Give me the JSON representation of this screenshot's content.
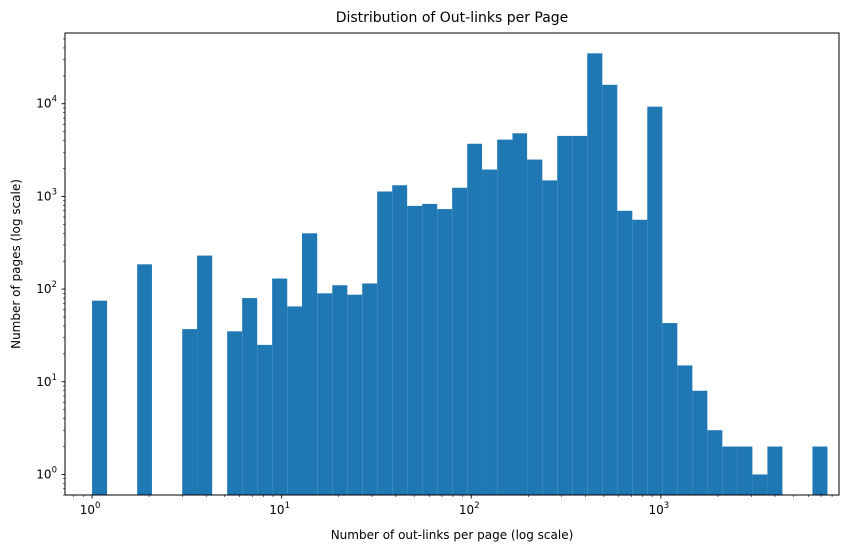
{
  "chart_data": {
    "type": "bar",
    "title": "Distribution of Out-links per Page",
    "xlabel": "Number of out-links per page (log scale)",
    "ylabel": "Number of pages (log scale)",
    "xscale": "log",
    "yscale": "log",
    "xlim": [
      0.72,
      8700
    ],
    "ylim": [
      0.6,
      58000
    ],
    "grid": false,
    "x_tick_values": [
      1,
      10,
      100,
      1000
    ],
    "x_tick_base": "10",
    "x_tick_exponents": [
      "0",
      "1",
      "2",
      "3"
    ],
    "y_tick_values": [
      1,
      10,
      100,
      1000,
      10000
    ],
    "y_tick_base": "10",
    "y_tick_exponents": [
      "0",
      "1",
      "2",
      "3",
      "4"
    ],
    "bar_color": "#1f77b4",
    "series": [
      {
        "bins": [
          {
            "x0": 1.0,
            "x1": 1.2,
            "count": 75
          },
          {
            "x0": 1.2,
            "x1": 1.44,
            "count": 0
          },
          {
            "x0": 1.44,
            "x1": 1.73,
            "count": 0
          },
          {
            "x0": 1.73,
            "x1": 2.07,
            "count": 185
          },
          {
            "x0": 2.07,
            "x1": 2.49,
            "count": 0
          },
          {
            "x0": 2.49,
            "x1": 2.99,
            "count": 0
          },
          {
            "x0": 2.99,
            "x1": 3.58,
            "count": 37
          },
          {
            "x0": 3.58,
            "x1": 4.3,
            "count": 230
          },
          {
            "x0": 4.3,
            "x1": 5.16,
            "count": 0
          },
          {
            "x0": 5.16,
            "x1": 6.19,
            "count": 35
          },
          {
            "x0": 6.19,
            "x1": 7.43,
            "count": 80
          },
          {
            "x0": 7.43,
            "x1": 8.91,
            "count": 25
          },
          {
            "x0": 8.91,
            "x1": 10.7,
            "count": 130
          },
          {
            "x0": 10.7,
            "x1": 12.8,
            "count": 65
          },
          {
            "x0": 12.8,
            "x1": 15.4,
            "count": 400
          },
          {
            "x0": 15.4,
            "x1": 18.5,
            "count": 90
          },
          {
            "x0": 18.5,
            "x1": 22.2,
            "count": 110
          },
          {
            "x0": 22.2,
            "x1": 26.6,
            "count": 87
          },
          {
            "x0": 26.6,
            "x1": 31.9,
            "count": 115
          },
          {
            "x0": 31.9,
            "x1": 38.3,
            "count": 1130
          },
          {
            "x0": 38.3,
            "x1": 45.9,
            "count": 1320
          },
          {
            "x0": 45.9,
            "x1": 55.1,
            "count": 790
          },
          {
            "x0": 55.1,
            "x1": 66.1,
            "count": 830
          },
          {
            "x0": 66.1,
            "x1": 79.3,
            "count": 730
          },
          {
            "x0": 79.3,
            "x1": 95.2,
            "count": 1240
          },
          {
            "x0": 95.2,
            "x1": 114,
            "count": 3700
          },
          {
            "x0": 114,
            "x1": 137,
            "count": 1950
          },
          {
            "x0": 137,
            "x1": 165,
            "count": 4100
          },
          {
            "x0": 165,
            "x1": 197,
            "count": 4800
          },
          {
            "x0": 197,
            "x1": 237,
            "count": 2500
          },
          {
            "x0": 237,
            "x1": 284,
            "count": 1490
          },
          {
            "x0": 284,
            "x1": 341,
            "count": 4500
          },
          {
            "x0": 341,
            "x1": 409,
            "count": 4500
          },
          {
            "x0": 409,
            "x1": 491,
            "count": 35000
          },
          {
            "x0": 491,
            "x1": 589,
            "count": 16000
          },
          {
            "x0": 589,
            "x1": 707,
            "count": 700
          },
          {
            "x0": 707,
            "x1": 848,
            "count": 560
          },
          {
            "x0": 848,
            "x1": 1018,
            "count": 9300
          },
          {
            "x0": 1018,
            "x1": 1221,
            "count": 43
          },
          {
            "x0": 1221,
            "x1": 1466,
            "count": 15
          },
          {
            "x0": 1466,
            "x1": 1759,
            "count": 8
          },
          {
            "x0": 1759,
            "x1": 2110,
            "count": 3
          },
          {
            "x0": 2110,
            "x1": 2532,
            "count": 2
          },
          {
            "x0": 2532,
            "x1": 3039,
            "count": 2
          },
          {
            "x0": 3039,
            "x1": 3647,
            "count": 1
          },
          {
            "x0": 3647,
            "x1": 4376,
            "count": 2
          },
          {
            "x0": 4376,
            "x1": 5251,
            "count": 0
          },
          {
            "x0": 5251,
            "x1": 6302,
            "count": 0
          },
          {
            "x0": 6302,
            "x1": 7562,
            "count": 2
          }
        ]
      }
    ]
  }
}
